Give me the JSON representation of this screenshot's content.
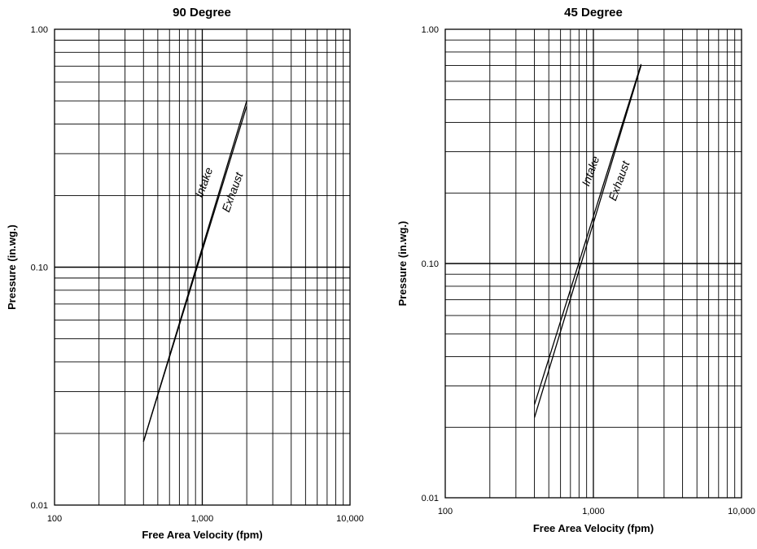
{
  "chart_data": [
    {
      "type": "line",
      "title": "90 Degree",
      "xlabel": "Free Area Velocity (fpm)",
      "ylabel": "Pressure (in.wg.)",
      "xscale": "log",
      "yscale": "log",
      "xlim": [
        100,
        10000
      ],
      "ylim": [
        0.01,
        1.0
      ],
      "x_ticks": [
        "100",
        "1,000",
        "10,000"
      ],
      "y_ticks": [
        "0.01",
        "0.10",
        "1.00"
      ],
      "grid": true,
      "legend": "none",
      "series": [
        {
          "name": "Intake",
          "x": [
            400,
            2000
          ],
          "y": [
            0.0185,
            0.5
          ]
        },
        {
          "name": "Exhaust",
          "x": [
            400,
            2000
          ],
          "y": [
            0.0185,
            0.475
          ]
        }
      ]
    },
    {
      "type": "line",
      "title": "45 Degree",
      "xlabel": "Free Area Velocity (fpm)",
      "ylabel": "Pressure (in.wg.)",
      "xscale": "log",
      "yscale": "log",
      "xlim": [
        100,
        10000
      ],
      "ylim": [
        0.01,
        1.0
      ],
      "x_ticks": [
        "100",
        "1,000",
        "10,000"
      ],
      "y_ticks": [
        "0.01",
        "0.10",
        "1.00"
      ],
      "grid": true,
      "legend": "none",
      "series": [
        {
          "name": "Intake",
          "x": [
            400,
            2100
          ],
          "y": [
            0.025,
            0.71
          ]
        },
        {
          "name": "Exhaust",
          "x": [
            400,
            2100
          ],
          "y": [
            0.022,
            0.7
          ]
        }
      ]
    }
  ]
}
